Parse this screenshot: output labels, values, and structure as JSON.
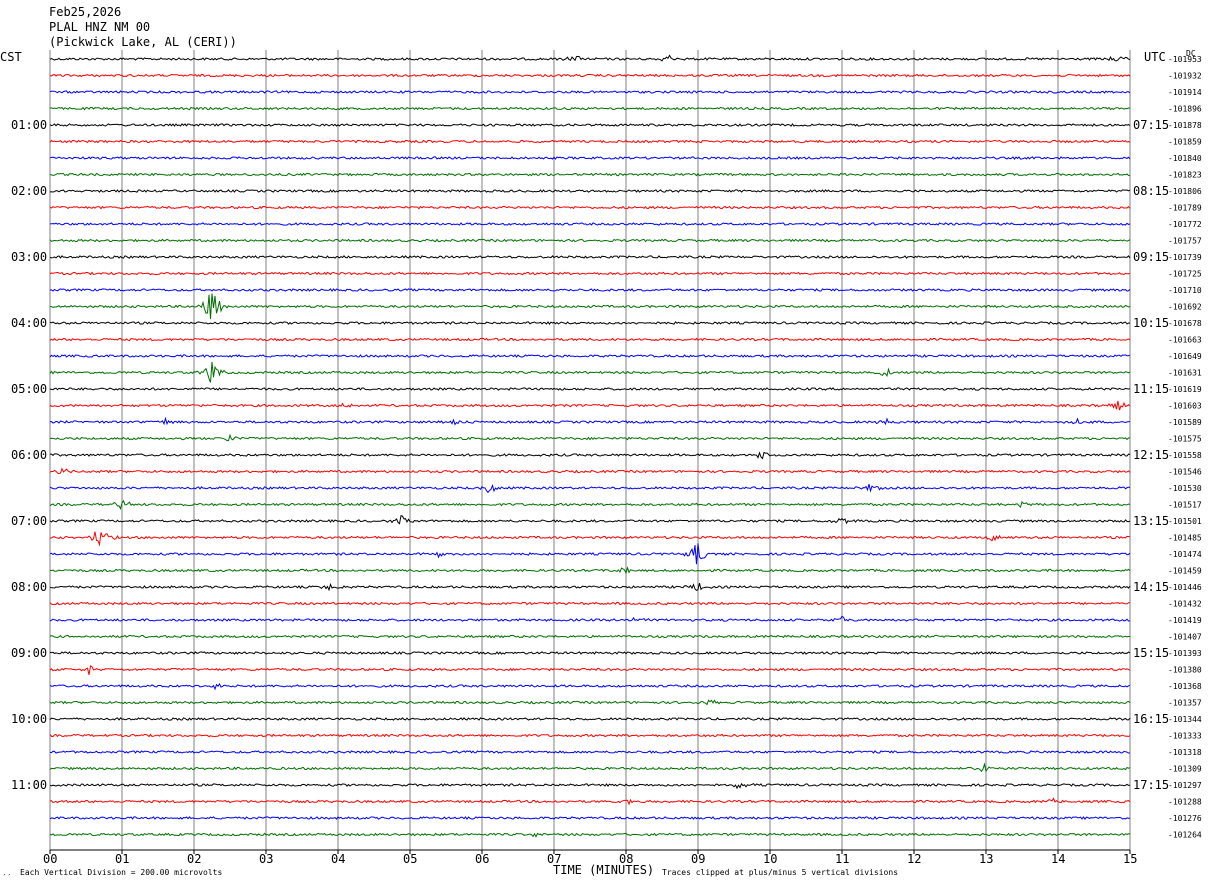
{
  "header": {
    "date": "Feb25,2026",
    "station": "PLAL HNZ NM 00",
    "location": "(Pickwick Lake, AL (CERI))"
  },
  "labels": {
    "left_tz": "CST",
    "right_tz": "UTC",
    "dc_head": "DC",
    "xlabel": "TIME (MINUTES)",
    "scale_note": "Each Vertical Division =  200.00 microvolts",
    "clip_note": "Traces clipped at plus/minus 5 vertical divisions",
    "corner_mark": "′′"
  },
  "colors": {
    "cycle": [
      "#000000",
      "#ff0000",
      "#0000ff",
      "#007000"
    ],
    "grid": "#808080"
  },
  "chart_data": {
    "type": "line",
    "title": "",
    "xlabel": "TIME (MINUTES)",
    "ylabel": "",
    "xlim": [
      0,
      15
    ],
    "x_ticks": [
      "00",
      "01",
      "02",
      "03",
      "04",
      "05",
      "06",
      "07",
      "08",
      "09",
      "10",
      "11",
      "12",
      "13",
      "14",
      "15"
    ],
    "grid": true,
    "trace_minutes": 15,
    "left_hour_labels": [
      "01:00",
      "02:00",
      "03:00",
      "04:00",
      "05:00",
      "06:00",
      "07:00",
      "08:00",
      "09:00",
      "10:00",
      "11:00"
    ],
    "right_hour_labels": [
      "07:15",
      "08:15",
      "09:15",
      "10:15",
      "11:15",
      "12:15",
      "13:15",
      "14:15",
      "15:15",
      "16:15",
      "17:15"
    ],
    "dc_offsets": [
      "-101953",
      "-101932",
      "-101914",
      "-101896",
      "-101878",
      "-101859",
      "-101840",
      "-101823",
      "-101806",
      "-101789",
      "-101772",
      "-101757",
      "-101739",
      "-101725",
      "-101710",
      "-101692",
      "-101678",
      "-101663",
      "-101649",
      "-101631",
      "-101619",
      "-101603",
      "-101589",
      "-101575",
      "-101558",
      "-101546",
      "-101530",
      "-101517",
      "-101501",
      "-101485",
      "-101474",
      "-101459",
      "-101446",
      "-101432",
      "-101419",
      "-101407",
      "-101393",
      "-101380",
      "-101368",
      "-101357",
      "-101344",
      "-101333",
      "-101318",
      "-101309",
      "-101297",
      "-101288",
      "-101276",
      "-101264"
    ],
    "events": [
      {
        "trace": 0,
        "minute": 7.3,
        "amp": 8
      },
      {
        "trace": 0,
        "minute": 8.6,
        "amp": 8
      },
      {
        "trace": 0,
        "minute": 14.8,
        "amp": 7
      },
      {
        "trace": 15,
        "minute": 2.25,
        "amp": 45
      },
      {
        "trace": 19,
        "minute": 2.25,
        "amp": 30
      },
      {
        "trace": 19,
        "minute": 11.6,
        "amp": 10
      },
      {
        "trace": 21,
        "minute": 4.15,
        "amp": 8
      },
      {
        "trace": 21,
        "minute": 14.85,
        "amp": 12
      },
      {
        "trace": 22,
        "minute": 1.6,
        "amp": 8
      },
      {
        "trace": 22,
        "minute": 5.6,
        "amp": 8
      },
      {
        "trace": 22,
        "minute": 11.6,
        "amp": 8
      },
      {
        "trace": 22,
        "minute": 14.3,
        "amp": 8
      },
      {
        "trace": 23,
        "minute": 2.5,
        "amp": 10
      },
      {
        "trace": 24,
        "minute": 9.9,
        "amp": 10
      },
      {
        "trace": 25,
        "minute": 0.2,
        "amp": 8
      },
      {
        "trace": 26,
        "minute": 6.1,
        "amp": 12
      },
      {
        "trace": 26,
        "minute": 11.4,
        "amp": 10
      },
      {
        "trace": 27,
        "minute": 1.0,
        "amp": 12
      },
      {
        "trace": 27,
        "minute": 13.5,
        "amp": 8
      },
      {
        "trace": 28,
        "minute": 4.9,
        "amp": 18
      },
      {
        "trace": 28,
        "minute": 11.0,
        "amp": 12
      },
      {
        "trace": 29,
        "minute": 0.7,
        "amp": 30
      },
      {
        "trace": 29,
        "minute": 13.1,
        "amp": 8
      },
      {
        "trace": 30,
        "minute": 5.4,
        "amp": 8
      },
      {
        "trace": 30,
        "minute": 9.0,
        "amp": 30
      },
      {
        "trace": 31,
        "minute": 8.0,
        "amp": 8
      },
      {
        "trace": 32,
        "minute": 3.9,
        "amp": 10
      },
      {
        "trace": 32,
        "minute": 9.0,
        "amp": 12
      },
      {
        "trace": 34,
        "minute": 8.1,
        "amp": 8
      },
      {
        "trace": 34,
        "minute": 11.0,
        "amp": 10
      },
      {
        "trace": 37,
        "minute": 0.55,
        "amp": 10
      },
      {
        "trace": 38,
        "minute": 2.3,
        "amp": 8
      },
      {
        "trace": 39,
        "minute": 9.15,
        "amp": 8
      },
      {
        "trace": 43,
        "minute": 13.0,
        "amp": 10
      },
      {
        "trace": 44,
        "minute": 9.6,
        "amp": 12
      },
      {
        "trace": 45,
        "minute": 8.0,
        "amp": 10
      },
      {
        "trace": 45,
        "minute": 13.9,
        "amp": 8
      },
      {
        "trace": 47,
        "minute": 6.8,
        "amp": 10
      }
    ]
  }
}
